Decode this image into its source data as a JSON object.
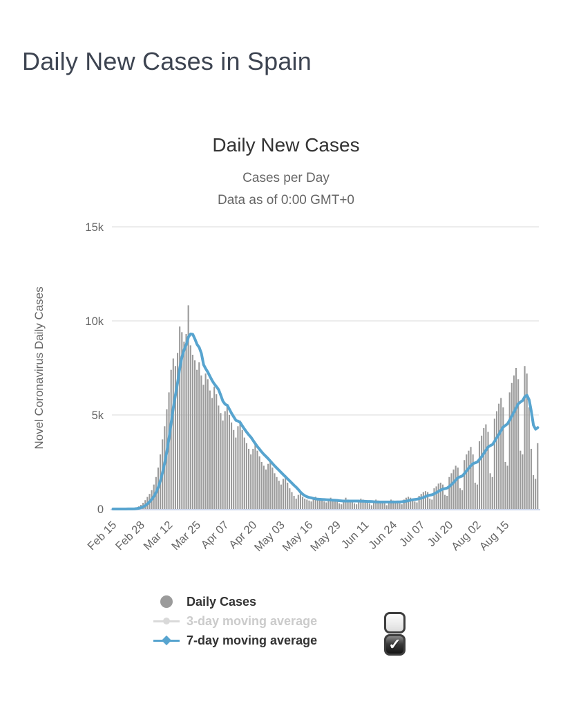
{
  "page": {
    "title": "Daily New Cases in Spain"
  },
  "chart": {
    "title": "Daily New Cases",
    "subtitle1": "Cases per Day",
    "subtitle2": "Data as of 0:00 GMT+0"
  },
  "legend": {
    "items": [
      {
        "label": "Daily Cases",
        "color": "#9b9b9b",
        "enabled": true
      },
      {
        "label": "3-day moving average",
        "color": "#d9d9d9",
        "enabled": false
      },
      {
        "label": "7-day moving average",
        "color": "#57a4cf",
        "enabled": true
      }
    ],
    "checkboxes": [
      {
        "name": "checkbox-3day",
        "checked": false,
        "glyph": ""
      },
      {
        "name": "checkbox-7day",
        "checked": true,
        "glyph": "✓"
      }
    ]
  },
  "chart_data": {
    "type": "bar",
    "title": "Daily New Cases",
    "subtitle": "Cases per Day / Data as of 0:00 GMT+0",
    "xlabel": "",
    "ylabel": "Novel Coronavirus Daily Cases",
    "ylim": [
      0,
      15000
    ],
    "grid": true,
    "legend_position": "bottom",
    "series_names": [
      "Daily Cases",
      "3-day moving average",
      "7-day moving average"
    ],
    "yticks": [
      {
        "value": 0,
        "label": "0"
      },
      {
        "value": 5000,
        "label": "5k"
      },
      {
        "value": 10000,
        "label": "10k"
      },
      {
        "value": 15000,
        "label": "15k"
      }
    ],
    "xticks": [
      {
        "day": 0,
        "label": "Feb 15"
      },
      {
        "day": 13,
        "label": "Feb 28"
      },
      {
        "day": 26,
        "label": "Mar 12"
      },
      {
        "day": 39,
        "label": "Mar 25"
      },
      {
        "day": 52,
        "label": "Apr 07"
      },
      {
        "day": 65,
        "label": "Apr 20"
      },
      {
        "day": 78,
        "label": "May 03"
      },
      {
        "day": 91,
        "label": "May 16"
      },
      {
        "day": 104,
        "label": "May 29"
      },
      {
        "day": 117,
        "label": "Jun 11"
      },
      {
        "day": 130,
        "label": "Jun 24"
      },
      {
        "day": 143,
        "label": "Jul 07"
      },
      {
        "day": 156,
        "label": "Jul 20"
      },
      {
        "day": 169,
        "label": "Aug 02"
      },
      {
        "day": 182,
        "label": "Aug 15"
      }
    ],
    "values": [
      0,
      0,
      1,
      2,
      1,
      3,
      2,
      4,
      6,
      9,
      40,
      80,
      140,
      220,
      330,
      470,
      640,
      800,
      1000,
      1300,
      1700,
      2200,
      2900,
      3700,
      4400,
      5300,
      6200,
      7400,
      8000,
      7600,
      8300,
      9700,
      9400,
      8900,
      9300,
      10830,
      8700,
      8200,
      7900,
      7400,
      7800,
      7100,
      6600,
      7200,
      6900,
      6300,
      5900,
      6500,
      6100,
      5500,
      5100,
      4700,
      5200,
      5500,
      5000,
      4600,
      4200,
      3800,
      4400,
      4700,
      4200,
      3800,
      3500,
      3200,
      2900,
      3200,
      3500,
      3100,
      2800,
      2500,
      2300,
      2100,
      2400,
      2600,
      2200,
      1900,
      1700,
      1500,
      1300,
      1600,
      1800,
      1400,
      1100,
      900,
      700,
      550,
      750,
      850,
      650,
      550,
      500,
      450,
      400,
      550,
      650,
      550,
      500,
      450,
      400,
      350,
      500,
      600,
      500,
      450,
      400,
      300,
      250,
      450,
      600,
      500,
      450,
      400,
      300,
      250,
      450,
      550,
      500,
      400,
      350,
      300,
      200,
      400,
      500,
      450,
      400,
      350,
      300,
      200,
      400,
      500,
      450,
      400,
      400,
      300,
      250,
      500,
      600,
      650,
      600,
      550,
      400,
      350,
      700,
      800,
      900,
      950,
      900,
      550,
      500,
      1100,
      1200,
      1350,
      1400,
      1300,
      750,
      700,
      1700,
      1900,
      2100,
      2300,
      2200,
      1100,
      1000,
      2600,
      2900,
      3100,
      3300,
      2900,
      1400,
      1300,
      3600,
      3900,
      4300,
      4500,
      4100,
      1900,
      1700,
      4800,
      5200,
      5600,
      5900,
      5400,
      2500,
      2300,
      6200,
      6700,
      7100,
      7500,
      6900,
      3100,
      2900,
      7600,
      7200,
      5400,
      3200,
      1800,
      1600,
      3500
    ],
    "moving_average_window": 7,
    "colors": {
      "bars": "#9b9b9b",
      "avg7": "#57a4cf",
      "avg3": "#d9d9d9",
      "grid": "#e6e6e6",
      "axis_line": "#ccd6eb",
      "tick_text": "#666666"
    }
  }
}
